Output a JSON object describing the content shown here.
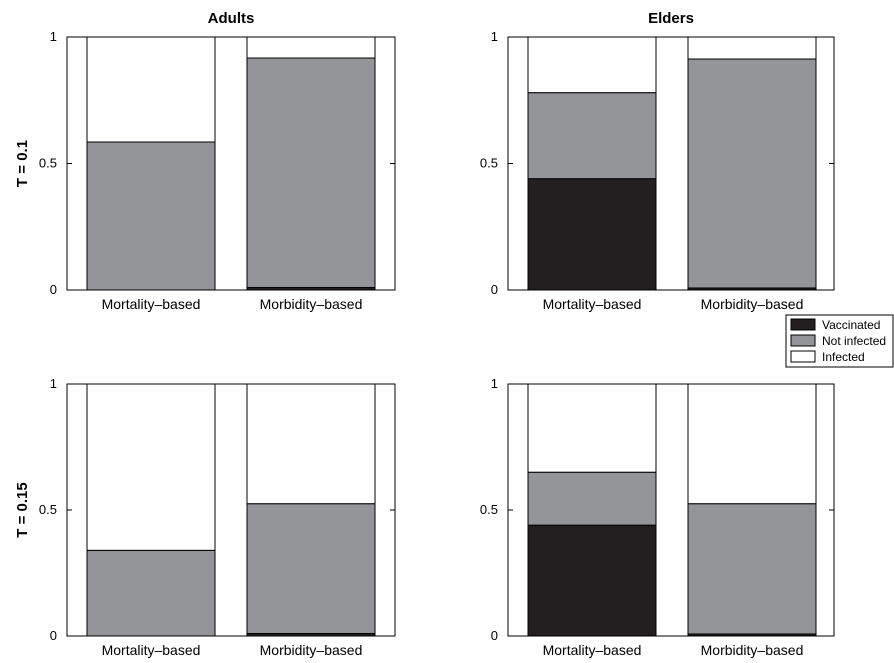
{
  "chart_data": [
    {
      "type": "bar",
      "stacked": true,
      "title": "Adults",
      "row_label": "T = 0.1",
      "categories": [
        "Mortality–based",
        "Morbidity–based"
      ],
      "ylim": [
        0,
        1
      ],
      "yticks": [
        "0",
        "0.5",
        "1"
      ],
      "series": [
        {
          "name": "Vaccinated",
          "values": [
            0.0,
            0.01
          ]
        },
        {
          "name": "Not infected",
          "values": [
            0.585,
            0.907
          ]
        },
        {
          "name": "Infected",
          "values": [
            0.415,
            0.083
          ]
        }
      ]
    },
    {
      "type": "bar",
      "stacked": true,
      "title": "Elders",
      "row_label": "",
      "categories": [
        "Mortality–based",
        "Morbidity–based"
      ],
      "ylim": [
        0,
        1
      ],
      "yticks": [
        "0",
        "0.5",
        "1"
      ],
      "series": [
        {
          "name": "Vaccinated",
          "values": [
            0.44,
            0.008
          ]
        },
        {
          "name": "Not infected",
          "values": [
            0.34,
            0.905
          ]
        },
        {
          "name": "Infected",
          "values": [
            0.22,
            0.087
          ]
        }
      ]
    },
    {
      "type": "bar",
      "stacked": true,
      "title": "",
      "row_label": "T = 0.15",
      "categories": [
        "Mortality–based",
        "Morbidity–based"
      ],
      "ylim": [
        0,
        1
      ],
      "yticks": [
        "0",
        "0.5",
        "1"
      ],
      "series": [
        {
          "name": "Vaccinated",
          "values": [
            0.0,
            0.01
          ]
        },
        {
          "name": "Not infected",
          "values": [
            0.34,
            0.515
          ]
        },
        {
          "name": "Infected",
          "values": [
            0.66,
            0.475
          ]
        }
      ]
    },
    {
      "type": "bar",
      "stacked": true,
      "title": "",
      "row_label": "",
      "categories": [
        "Mortality–based",
        "Morbidity–based"
      ],
      "ylim": [
        0,
        1
      ],
      "yticks": [
        "0",
        "0.5",
        "1"
      ],
      "series": [
        {
          "name": "Vaccinated",
          "values": [
            0.44,
            0.008
          ]
        },
        {
          "name": "Not infected",
          "values": [
            0.21,
            0.517
          ]
        },
        {
          "name": "Infected",
          "values": [
            0.35,
            0.475
          ]
        }
      ]
    }
  ],
  "legend": {
    "placement": "right",
    "entries": [
      {
        "label": "Vaccinated",
        "color": "#231f20"
      },
      {
        "label": "Not infected",
        "color": "#939598"
      },
      {
        "label": "Infected",
        "color": "#ffffff"
      }
    ]
  }
}
